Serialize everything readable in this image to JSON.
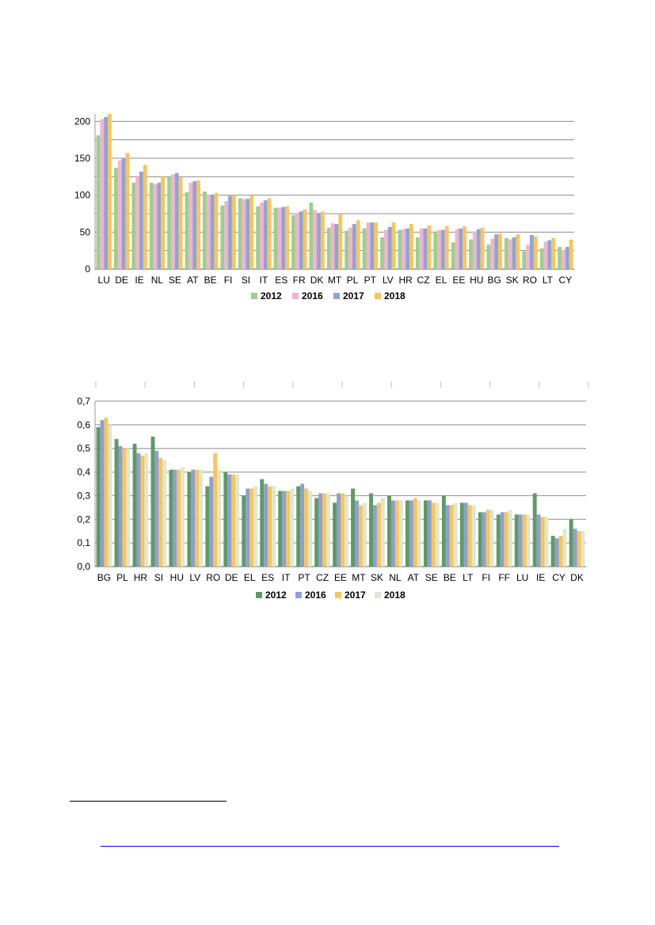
{
  "chart_data": [
    {
      "type": "bar",
      "categories": [
        "LU",
        "DE",
        "IE",
        "NL",
        "SE",
        "AT",
        "BE",
        "FI",
        "SI",
        "IT",
        "ES",
        "FR",
        "DK",
        "MT",
        "PL",
        "PT",
        "LV",
        "HR",
        "CZ",
        "EL",
        "EE",
        "HU",
        "BG",
        "SK",
        "RO",
        "LT",
        "CY"
      ],
      "series": [
        {
          "name": "2012",
          "color": "#9dcf8c",
          "values": [
            181,
            137,
            117,
            117,
            125,
            104,
            105,
            86,
            96,
            85,
            83,
            73,
            90,
            56,
            52,
            55,
            43,
            53,
            43,
            51,
            36,
            40,
            33,
            42,
            24,
            28,
            30
          ]
        },
        {
          "name": "2016",
          "color": "#f2b3cf",
          "values": [
            203,
            147,
            125,
            115,
            128,
            117,
            101,
            92,
            95,
            90,
            83,
            76,
            80,
            62,
            56,
            63,
            53,
            54,
            55,
            53,
            54,
            51,
            41,
            40,
            33,
            37,
            26
          ]
        },
        {
          "name": "2017",
          "color": "#8da4d8",
          "values": [
            206,
            150,
            132,
            117,
            130,
            119,
            100,
            99,
            95,
            93,
            84,
            78,
            76,
            61,
            61,
            63,
            57,
            55,
            55,
            53,
            55,
            54,
            47,
            43,
            46,
            39,
            30
          ]
        },
        {
          "name": "2018",
          "color": "#f9c45a",
          "values": [
            210,
            157,
            141,
            125,
            124,
            120,
            103,
            99,
            99,
            96,
            85,
            81,
            78,
            74,
            66,
            63,
            63,
            61,
            59,
            58,
            58,
            56,
            48,
            47,
            44,
            42,
            40
          ]
        }
      ],
      "ylim": [
        0,
        210
      ],
      "yticks": [
        "0",
        "50",
        "100",
        "150",
        "200"
      ],
      "ytick_values": [
        0,
        50,
        100,
        150,
        200
      ],
      "gridlines": [
        0,
        25,
        50,
        75,
        100,
        125,
        150,
        175,
        200
      ],
      "grid": true,
      "legend_position": "bottom"
    },
    {
      "type": "bar",
      "categories": [
        "BG",
        "PL",
        "HR",
        "SI",
        "HU",
        "LV",
        "RO",
        "DE",
        "EL",
        "ES",
        "IT",
        "PT",
        "CZ",
        "EE",
        "MT",
        "SK",
        "NL",
        "AT",
        "SE",
        "BE",
        "LT",
        "FI",
        "FF",
        "LU",
        "IE",
        "CY",
        "DK"
      ],
      "series": [
        {
          "name": "2012",
          "color": "#5e9a66",
          "values": [
            0.59,
            0.54,
            0.52,
            0.55,
            0.41,
            0.4,
            0.34,
            0.4,
            0.3,
            0.37,
            0.32,
            0.34,
            0.29,
            0.27,
            0.33,
            0.31,
            0.3,
            0.28,
            0.28,
            0.3,
            0.27,
            0.23,
            0.22,
            0.22,
            0.31,
            0.13,
            0.2
          ]
        },
        {
          "name": "2016",
          "color": "#8d9fd5",
          "values": [
            0.62,
            0.51,
            0.48,
            0.49,
            0.41,
            0.41,
            0.38,
            0.39,
            0.33,
            0.35,
            0.32,
            0.35,
            0.31,
            0.31,
            0.28,
            0.26,
            0.28,
            0.28,
            0.28,
            0.26,
            0.27,
            0.23,
            0.23,
            0.22,
            0.22,
            0.12,
            0.16
          ]
        },
        {
          "name": "2017",
          "color": "#f9c45a",
          "values": [
            0.63,
            0.5,
            0.47,
            0.46,
            0.41,
            0.41,
            0.48,
            0.39,
            0.33,
            0.34,
            0.32,
            0.33,
            0.31,
            0.31,
            0.26,
            0.27,
            0.28,
            0.29,
            0.27,
            0.26,
            0.26,
            0.24,
            0.23,
            0.22,
            0.21,
            0.13,
            0.15
          ]
        },
        {
          "name": "2018",
          "color": "#dde8cd",
          "values": [
            0.6,
            0.5,
            0.48,
            0.45,
            0.42,
            0.41,
            0.41,
            0.39,
            0.34,
            0.34,
            0.33,
            0.32,
            0.31,
            0.3,
            0.27,
            0.29,
            0.28,
            0.28,
            0.27,
            0.27,
            0.26,
            0.24,
            0.24,
            0.22,
            0.21,
            0.16,
            0.15
          ]
        }
      ],
      "ylim": [
        0,
        0.7
      ],
      "yticks": [
        "0,0",
        "0,1",
        "0,2",
        "0,3",
        "0,4",
        "0,5",
        "0,6",
        "0,7"
      ],
      "ytick_values": [
        0,
        0.1,
        0.2,
        0.3,
        0.4,
        0.5,
        0.6,
        0.7
      ],
      "grid": true,
      "legend_position": "bottom"
    }
  ]
}
